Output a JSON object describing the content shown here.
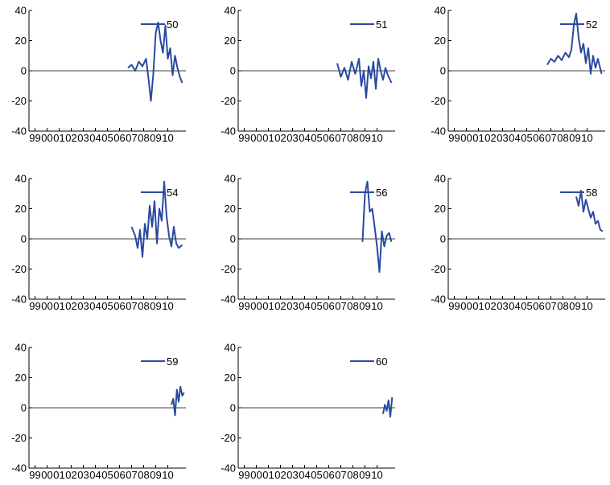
{
  "chart_data": {
    "type": "line",
    "layout": "small-multiples-3-columns",
    "series_color": "#2a4aa0",
    "axis_color": "#000000",
    "yticks": [
      -40,
      -20,
      0,
      20,
      40
    ],
    "ylim": [
      -40,
      40
    ],
    "xlim": [
      1999,
      2012
    ],
    "xtick_labels": [
      "99",
      "00",
      "01",
      "02",
      "03",
      "04",
      "05",
      "06",
      "07",
      "08",
      "09",
      "10"
    ],
    "xtick_positions": [
      1999.5,
      2000.5,
      2001.5,
      2002.5,
      2003.5,
      2004.5,
      2005.5,
      2006.5,
      2007.5,
      2008.5,
      2009.5,
      2010.5
    ],
    "zero_line": true,
    "legend_placement": "top-right",
    "panels": [
      {
        "name": "50",
        "x": [
          2007.2,
          2007.5,
          2007.8,
          2008.1,
          2008.4,
          2008.7,
          2008.9,
          2009.1,
          2009.3,
          2009.5,
          2009.7,
          2009.9,
          2010.1,
          2010.3,
          2010.5,
          2010.7,
          2010.9,
          2011.1,
          2011.3,
          2011.5,
          2011.7
        ],
        "y": [
          2,
          4,
          0,
          6,
          3,
          8,
          -5,
          -20,
          -2,
          25,
          32,
          20,
          12,
          30,
          8,
          15,
          -3,
          10,
          2,
          -4,
          -8
        ]
      },
      {
        "name": "51",
        "x": [
          2007.2,
          2007.5,
          2007.8,
          2008.1,
          2008.4,
          2008.7,
          2009.0,
          2009.2,
          2009.4,
          2009.6,
          2009.8,
          2010.0,
          2010.2,
          2010.4,
          2010.6,
          2010.8,
          2011.0,
          2011.2,
          2011.4,
          2011.7
        ],
        "y": [
          5,
          -4,
          2,
          -6,
          6,
          -2,
          8,
          -10,
          0,
          -18,
          3,
          -5,
          6,
          -12,
          8,
          0,
          -6,
          2,
          -3,
          -8
        ]
      },
      {
        "name": "52",
        "x": [
          2007.2,
          2007.5,
          2007.8,
          2008.1,
          2008.4,
          2008.7,
          2009.0,
          2009.2,
          2009.4,
          2009.6,
          2009.8,
          2010.0,
          2010.2,
          2010.4,
          2010.6,
          2010.8,
          2011.0,
          2011.2,
          2011.4,
          2011.7
        ],
        "y": [
          4,
          8,
          6,
          10,
          7,
          12,
          9,
          14,
          30,
          38,
          22,
          12,
          18,
          5,
          15,
          -2,
          10,
          2,
          8,
          -2
        ]
      },
      {
        "name": "54",
        "x": [
          2007.5,
          2007.8,
          2008.0,
          2008.2,
          2008.4,
          2008.6,
          2008.8,
          2009.0,
          2009.2,
          2009.4,
          2009.6,
          2009.8,
          2010.0,
          2010.2,
          2010.4,
          2010.6,
          2010.8,
          2011.0,
          2011.2,
          2011.4,
          2011.7
        ],
        "y": [
          8,
          2,
          -6,
          6,
          -12,
          10,
          0,
          22,
          8,
          25,
          -3,
          20,
          12,
          38,
          15,
          2,
          -5,
          8,
          -3,
          -6,
          -4
        ]
      },
      {
        "name": "56",
        "x": [
          2009.3,
          2009.5,
          2009.7,
          2009.9,
          2010.1,
          2010.3,
          2010.5,
          2010.7,
          2010.9,
          2011.1,
          2011.3,
          2011.5,
          2011.7
        ],
        "y": [
          -2,
          30,
          38,
          18,
          20,
          8,
          -5,
          -22,
          5,
          -5,
          2,
          4,
          -2
        ]
      },
      {
        "name": "58",
        "x": [
          2009.6,
          2009.8,
          2010.0,
          2010.2,
          2010.4,
          2010.6,
          2010.8,
          2011.0,
          2011.2,
          2011.4,
          2011.6,
          2011.8
        ],
        "y": [
          28,
          22,
          32,
          18,
          26,
          20,
          14,
          18,
          10,
          12,
          6,
          5
        ]
      },
      {
        "name": "59",
        "x": [
          2010.8,
          2010.95,
          2011.1,
          2011.25,
          2011.4,
          2011.55,
          2011.7,
          2011.85
        ],
        "y": [
          2,
          6,
          -5,
          12,
          4,
          14,
          8,
          10
        ]
      },
      {
        "name": "60",
        "x": [
          2011.0,
          2011.15,
          2011.3,
          2011.45,
          2011.6,
          2011.75
        ],
        "y": [
          -4,
          2,
          -2,
          5,
          -6,
          7
        ]
      }
    ]
  }
}
